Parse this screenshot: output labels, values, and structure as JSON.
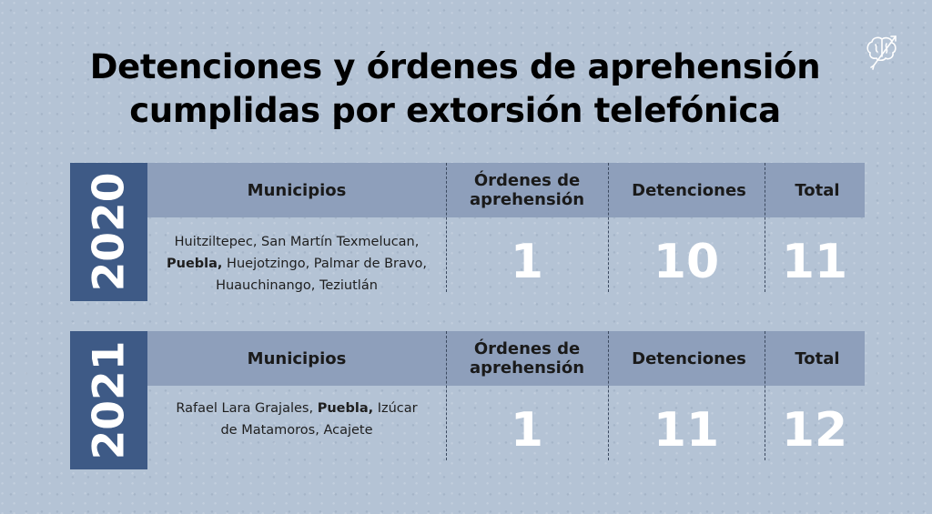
{
  "title": {
    "line1": "Detenciones y órdenes de aprehensión",
    "line2": "cumplidas por extorsión telefónica"
  },
  "logo_icon": "brain-arrow-icon",
  "colors": {
    "background": "#b4c3d5",
    "year_box": "#3e5a86",
    "header_band": "#8e9fbb",
    "numbers": "#ffffff"
  },
  "headers": {
    "municipios": "Municipios",
    "ordenes": "Órdenes de aprehensión",
    "detenciones": "Detenciones",
    "total": "Total"
  },
  "rows": [
    {
      "year": "2020",
      "municipios": [
        {
          "text": "Huitziltepec, San Martín Texmelucan, ",
          "bold": false
        },
        {
          "text": "Puebla,",
          "bold": true
        },
        {
          "text": " Huejotzingo, Palmar de Bravo, Huauchinango, Teziutlán",
          "bold": false
        }
      ],
      "ordenes": "1",
      "detenciones": "10",
      "total": "11"
    },
    {
      "year": "2021",
      "municipios": [
        {
          "text": "Rafael Lara Grajales, ",
          "bold": false
        },
        {
          "text": "Puebla,",
          "bold": true
        },
        {
          "text": " Izúcar de Matamoros, Acajete",
          "bold": false
        }
      ],
      "ordenes": "1",
      "detenciones": "11",
      "total": "12"
    }
  ]
}
